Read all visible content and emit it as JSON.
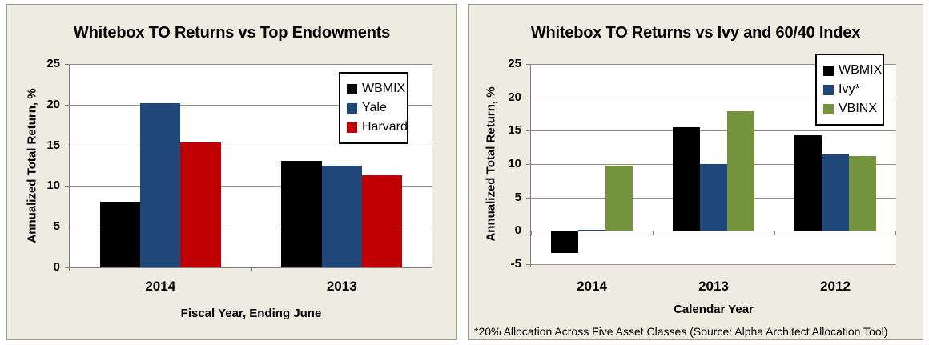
{
  "colors": {
    "panel_background": "#EEEBE0",
    "panel_border": "#9B9A95",
    "plot_background": "#FFFFFF",
    "gridline": "#8F8F8C",
    "axis_line": "#7F7F7C",
    "text": "#000000",
    "wbmix_black": "#000000",
    "endowment_blue": "#20477A",
    "harvard_red": "#C00000",
    "vbinx_green": "#75923C",
    "legend_border": "#000000",
    "legend_background": "#FFFFFF"
  },
  "chart_data": [
    {
      "type": "bar",
      "title": "Whitebox TO Returns vs Top Endowments",
      "ylabel": "Annualized Total Return, %",
      "xlabel": "Fiscal Year, Ending June",
      "categories": [
        "2014",
        "2013"
      ],
      "series": [
        {
          "name": "WBMIX",
          "color": "#000000",
          "values": [
            8.1,
            13.1
          ]
        },
        {
          "name": "Yale",
          "color": "#20477A",
          "values": [
            20.2,
            12.5
          ]
        },
        {
          "name": "Harvard",
          "color": "#C00000",
          "values": [
            15.4,
            11.3
          ]
        }
      ],
      "ylim": [
        0,
        25
      ],
      "ytick_step": 5,
      "ytick_labels": [
        "0",
        "5",
        "10",
        "15",
        "20",
        "25"
      ],
      "grid": true,
      "legend_position": "top-right"
    },
    {
      "type": "bar",
      "title": "Whitebox TO Returns vs Ivy and 60/40 Index",
      "ylabel": "Annualized Total Return, %",
      "xlabel": "Calendar Year",
      "footnote": "*20% Allocation Across Five Asset Classes (Source: Alpha Architect  Allocation Tool)",
      "categories": [
        "2014",
        "2013",
        "2012"
      ],
      "series": [
        {
          "name": "WBMIX",
          "color": "#000000",
          "values": [
            -3.3,
            15.5,
            14.3
          ]
        },
        {
          "name": "Ivy*",
          "color": "#20477A",
          "values": [
            0.2,
            10,
            11.5
          ]
        },
        {
          "name": "VBINX",
          "color": "#75923C",
          "values": [
            9.8,
            17.9,
            11.2
          ]
        }
      ],
      "ylim": [
        -5,
        25
      ],
      "ytick_step": 5,
      "ytick_labels": [
        "-5",
        "0",
        "5",
        "10",
        "15",
        "20",
        "25"
      ],
      "grid": true,
      "legend_position": "top-right"
    }
  ]
}
